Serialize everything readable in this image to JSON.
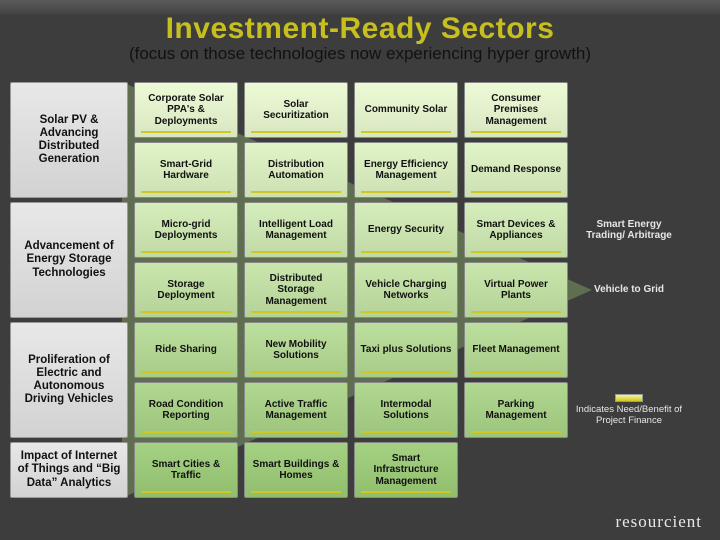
{
  "title": "Investment-Ready Sectors",
  "subtitle": "(focus on those technologies now experiencing hyper growth)",
  "brand": "resourcient",
  "legend": "Indicates Need/Benefit of Project Finance",
  "row_label_bg": "#e0e0e0",
  "cell_colors": {
    "r1": "#d9e6c2",
    "r2": "#cde0b4",
    "r3": "#c1d9a6",
    "r4": "#b5d298",
    "r5": "#a9cb8a",
    "r6": "#9dc47c",
    "r7": "#91bd6e"
  },
  "row_labels": [
    "Solar PV & Advancing Distributed Generation",
    "Advancement of Energy Storage Technologies",
    "Proliferation of Electric and Autonomous Driving Vehicles",
    "Impact of Internet of Things and “Big Data” Analytics"
  ],
  "rows": [
    {
      "cells": [
        "Corporate Solar PPA's & Deployments",
        "Solar Securitization",
        "Community Solar",
        "Consumer Premises Management"
      ],
      "side": ""
    },
    {
      "cells": [
        "Smart-Grid Hardware",
        "Distribution Automation",
        "Energy Efficiency Management",
        "Demand Response"
      ],
      "side": ""
    },
    {
      "cells": [
        "Micro-grid Deployments",
        "Intelligent Load Management",
        "Energy Security",
        "Smart Devices & Appliances"
      ],
      "side": "Smart Energy Trading/ Arbitrage"
    },
    {
      "cells": [
        "Storage Deployment",
        "Distributed Storage Management",
        "Vehicle Charging Networks",
        "Virtual Power Plants"
      ],
      "side": "Vehicle to Grid"
    },
    {
      "cells": [
        "Ride Sharing",
        "New Mobility Solutions",
        "Taxi plus Solutions",
        "Fleet Management"
      ],
      "side": ""
    },
    {
      "cells": [
        "Road Condition Reporting",
        "Active Traffic Management",
        "Intermodal Solutions",
        "Parking Management"
      ],
      "side": ""
    },
    {
      "cells": [
        "Smart Cities & Traffic",
        "Smart Buildings & Homes",
        "Smart Infrastructure Management"
      ],
      "side": ""
    }
  ]
}
